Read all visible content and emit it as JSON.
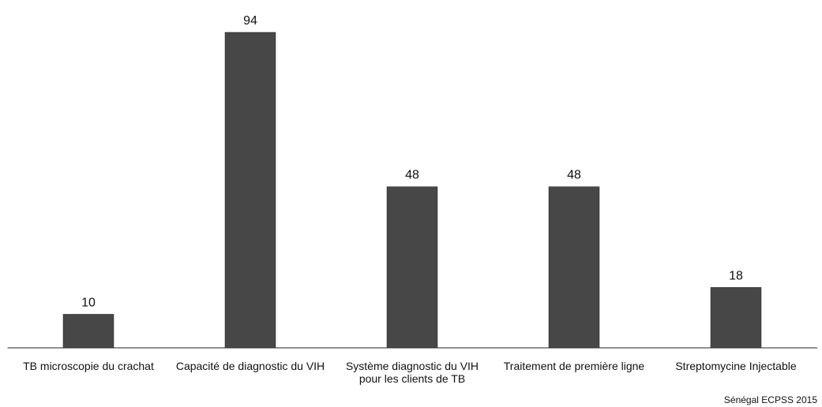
{
  "chart_data": {
    "type": "bar",
    "categories": [
      "TB microscopie du crachat",
      "Capacité de diagnostic du VIH",
      "Système diagnostic du VIH pour les clients de TB",
      "Traitement de première ligne",
      "Streptomycine Injectable"
    ],
    "values": [
      10,
      94,
      48,
      48,
      18
    ],
    "color": "#474748",
    "source": "Sénégal ECPSS 2015"
  }
}
